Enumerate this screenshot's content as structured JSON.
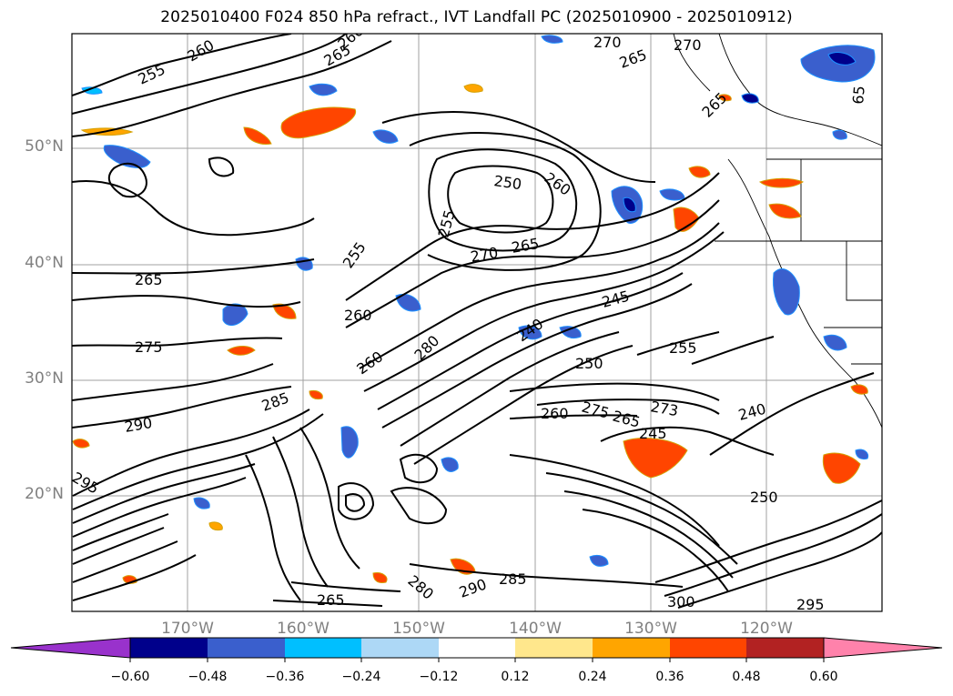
{
  "title": "2025010400 F024 850 hPa refract., IVT Landfall PC (2025010900 - 2025010912)",
  "map": {
    "lat_labels": [
      "50°N",
      "40°N",
      "30°N",
      "20°N"
    ],
    "lon_labels": [
      "170°W",
      "160°W",
      "150°W",
      "140°W",
      "130°W",
      "120°W"
    ],
    "contour_labels": [
      "255",
      "260",
      "260",
      "265",
      "270",
      "265",
      "270",
      "265",
      "65",
      "265",
      "275",
      "285",
      "290",
      "295",
      "250",
      "260",
      "255",
      "255",
      "260",
      "260",
      "270",
      "280",
      "265",
      "245",
      "240",
      "250",
      "255",
      "260",
      "275",
      "265",
      "273",
      "245",
      "240",
      "250",
      "290",
      "285",
      "265",
      "280",
      "300",
      "295"
    ]
  },
  "colorbar": {
    "ticks": [
      "−0.60",
      "−0.48",
      "−0.36",
      "−0.24",
      "−0.12",
      "0.12",
      "0.24",
      "0.36",
      "0.48",
      "0.60"
    ],
    "colors": [
      "#9932cc",
      "#00008b",
      "#3a5fcd",
      "#00bfff",
      "#add8f6",
      "#ffffff",
      "#ffe78c",
      "#ffa500",
      "#ff4500",
      "#b22222",
      "#ff82ab"
    ]
  }
}
